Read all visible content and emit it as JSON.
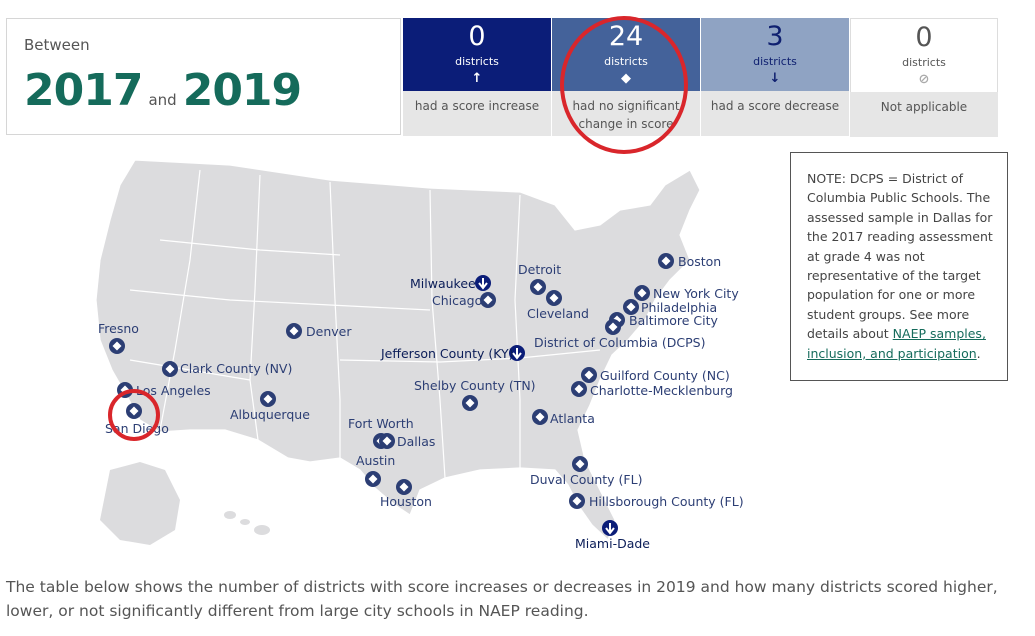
{
  "header": {
    "between_label": "Between",
    "year_start": "2017",
    "and_label": "and",
    "year_end": "2019"
  },
  "stats": [
    {
      "count": "0",
      "unit": "districts",
      "symbol": "↑",
      "caption": "had a score increase"
    },
    {
      "count": "24",
      "unit": "districts",
      "symbol": "◆",
      "caption": "had no significant change in score"
    },
    {
      "count": "3",
      "unit": "districts",
      "symbol": "↓",
      "caption": "had a score decrease"
    },
    {
      "count": "0",
      "unit": "districts",
      "symbol": "⊘",
      "caption": "Not applicable"
    }
  ],
  "note": {
    "text": "NOTE: DCPS = District of Columbia Public Schools. The assessed sample in Dallas for the 2017 reading assessment at grade 4 was not representative of the target population for one or more student groups. See more details about ",
    "link": "NAEP samples, inclusion, and participation",
    "end": "."
  },
  "cities": [
    {
      "name": "Boston",
      "status": "no-change"
    },
    {
      "name": "New York City",
      "status": "no-change"
    },
    {
      "name": "Philadelphia",
      "status": "no-change"
    },
    {
      "name": "Baltimore City",
      "status": "no-change"
    },
    {
      "name": "Detroit",
      "status": "no-change"
    },
    {
      "name": "Cleveland",
      "status": "no-change"
    },
    {
      "name": "Milwaukee",
      "status": "decrease"
    },
    {
      "name": "Chicago",
      "status": "no-change"
    },
    {
      "name": "District of Columbia (DCPS)",
      "status": "no-change"
    },
    {
      "name": "Jefferson County (KY)",
      "status": "decrease"
    },
    {
      "name": "Denver",
      "status": "no-change"
    },
    {
      "name": "Fresno",
      "status": "no-change"
    },
    {
      "name": "Clark County (NV)",
      "status": "no-change"
    },
    {
      "name": "Los Angeles",
      "status": "no-change"
    },
    {
      "name": "San Diego",
      "status": "no-change"
    },
    {
      "name": "Albuquerque",
      "status": "no-change"
    },
    {
      "name": "Shelby County (TN)",
      "status": "no-change"
    },
    {
      "name": "Guilford County (NC)",
      "status": "no-change"
    },
    {
      "name": "Charlotte-Mecklenburg",
      "status": "no-change"
    },
    {
      "name": "Atlanta",
      "status": "no-change"
    },
    {
      "name": "Fort Worth",
      "status": "no-change"
    },
    {
      "name": "Dallas",
      "status": "no-change"
    },
    {
      "name": "Austin",
      "status": "no-change"
    },
    {
      "name": "Houston",
      "status": "no-change"
    },
    {
      "name": "Duval County (FL)",
      "status": "no-change"
    },
    {
      "name": "Hillsborough County (FL)",
      "status": "no-change"
    },
    {
      "name": "Miami-Dade",
      "status": "decrease"
    }
  ],
  "footer_text": "The table below shows the number of districts with score increases or decreases in 2019 and how many districts scored higher, lower, or not significantly different from large city schools in NAEP reading.",
  "colors": {
    "year": "#156b5b",
    "increase": "#0b1d78",
    "no_change": "#44629a",
    "decrease": "#8fa3c3",
    "highlight_ring": "#d9262b",
    "map_fill": "#dcdcde",
    "marker": "#2c3e74"
  }
}
